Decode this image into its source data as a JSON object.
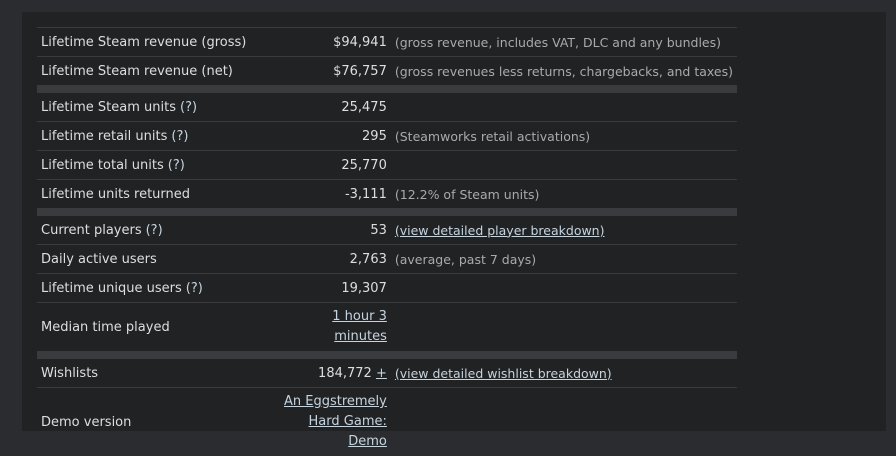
{
  "sections": [
    {
      "rows": [
        {
          "label": "Lifetime Steam revenue (gross)",
          "value": "$94,941",
          "note": "(gross revenue, includes VAT, DLC and any bundles)"
        },
        {
          "label": "Lifetime Steam revenue (net)",
          "value": "$76,757",
          "note": "(gross revenues less returns, chargebacks, and taxes)"
        }
      ]
    },
    {
      "rows": [
        {
          "label": "Lifetime Steam units",
          "help": "(?)",
          "value": "25,475"
        },
        {
          "label": "Lifetime retail units",
          "help": "(?)",
          "value": "295",
          "note": "(Steamworks retail activations)"
        },
        {
          "label": "Lifetime total units",
          "help": "(?)",
          "value": "25,770"
        },
        {
          "label": "Lifetime units returned",
          "value": "-3,111",
          "note": "(12.2% of Steam units)"
        }
      ]
    },
    {
      "rows": [
        {
          "label": "Current players",
          "help": "(?)",
          "value": "53",
          "note_link": "(view detailed player breakdown)"
        },
        {
          "label": "Daily active users",
          "value": "2,763",
          "note": "(average, past 7 days)"
        },
        {
          "label": "Lifetime unique users",
          "help": "(?)",
          "value": "19,307"
        },
        {
          "label": "Median time played",
          "value_link": "1 hour 3 minutes"
        }
      ]
    },
    {
      "rows": [
        {
          "label": "Wishlists",
          "value": "184,772",
          "value_extra": "+",
          "note_link": "(view detailed wishlist breakdown)"
        },
        {
          "label": "Demo version",
          "value_link": "An Eggstremely Hard Game: Demo"
        }
      ]
    }
  ]
}
